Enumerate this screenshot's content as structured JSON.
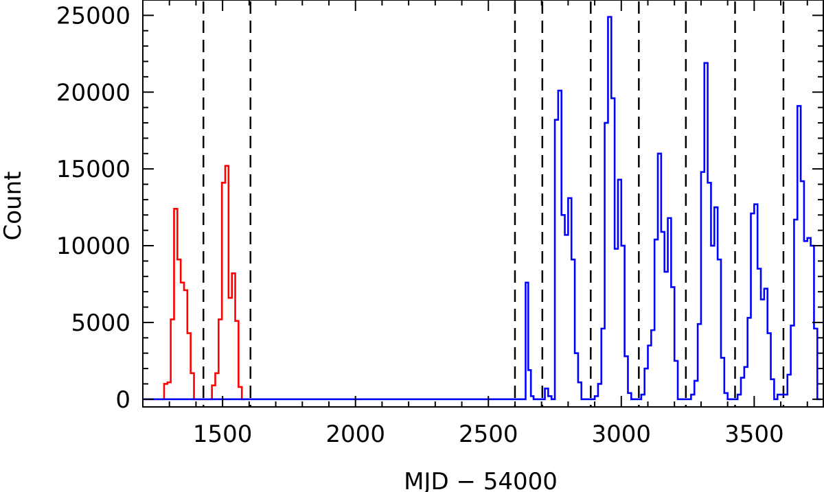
{
  "chart_data": {
    "type": "histogram",
    "title": "",
    "xlabel": "MJD − 54000",
    "ylabel": "Count",
    "xlim": [
      1200,
      3760
    ],
    "ylim": [
      -500,
      26000
    ],
    "x_ticks": [
      1500,
      2000,
      2500,
      3000,
      3500
    ],
    "y_ticks": [
      0,
      5000,
      10000,
      15000,
      20000,
      25000
    ],
    "grid": false,
    "legend": "none",
    "bin_width": 12.5,
    "dashed_lines_x": [
      1428,
      1605,
      2600,
      2703,
      2885,
      3066,
      3243,
      3428,
      3610
    ],
    "series": [
      {
        "color": "#ff0000",
        "x": [
          1200,
          1280,
          1292.5,
          1305,
          1317.5,
          1330,
          1342.5,
          1355,
          1367.5,
          1380,
          1392.5,
          1460,
          1472.5,
          1485,
          1497.5,
          1510,
          1522.5,
          1535,
          1547.5,
          1560,
          1572.5
        ],
        "y": [
          0,
          1000,
          1100,
          5200,
          12400,
          9100,
          7600,
          7100,
          4300,
          1700,
          0,
          900,
          1700,
          5200,
          14100,
          15200,
          6600,
          8200,
          5100,
          800,
          0
        ]
      },
      {
        "color": "#0000ff",
        "x": [
          1200,
          2640,
          2650,
          2660,
          2670,
          2712.5,
          2725,
          2737.5,
          2750,
          2762.5,
          2775,
          2787.5,
          2800,
          2812.5,
          2825,
          2837.5,
          2850,
          2900,
          2912.5,
          2925,
          2937.5,
          2950,
          2962.5,
          2975,
          2987.5,
          3000,
          3012.5,
          3025,
          3037.5,
          3075,
          3087.5,
          3100,
          3112.5,
          3125,
          3137.5,
          3150,
          3162.5,
          3175,
          3187.5,
          3200,
          3212.5,
          3262.5,
          3275,
          3287.5,
          3300,
          3312.5,
          3325,
          3337.5,
          3350,
          3362.5,
          3375,
          3387.5,
          3400,
          3437.5,
          3450,
          3462.5,
          3475,
          3487.5,
          3500,
          3512.5,
          3525,
          3537.5,
          3550,
          3562.5,
          3575,
          3587.5,
          3625,
          3637.5,
          3650,
          3662.5,
          3675,
          3687.5,
          3700,
          3712.5,
          3725,
          3737.5,
          3750
        ],
        "y": [
          0,
          7600,
          1900,
          200,
          0,
          700,
          200,
          0,
          18200,
          20100,
          12000,
          10700,
          13100,
          9100,
          3000,
          1100,
          0,
          200,
          1000,
          4600,
          18000,
          24900,
          19600,
          9800,
          14300,
          10000,
          2800,
          400,
          0,
          300,
          2000,
          3500,
          4500,
          10400,
          16000,
          10900,
          8300,
          11800,
          7300,
          2500,
          0,
          300,
          1200,
          4900,
          14800,
          21900,
          14100,
          10000,
          12500,
          9100,
          2700,
          400,
          0,
          300,
          1400,
          2100,
          5300,
          12100,
          12700,
          8500,
          6500,
          7200,
          4300,
          1300,
          0,
          300,
          1600,
          4800,
          11700,
          19100,
          14200,
          10300,
          10500,
          10000,
          4600,
          0
        ]
      }
    ]
  }
}
